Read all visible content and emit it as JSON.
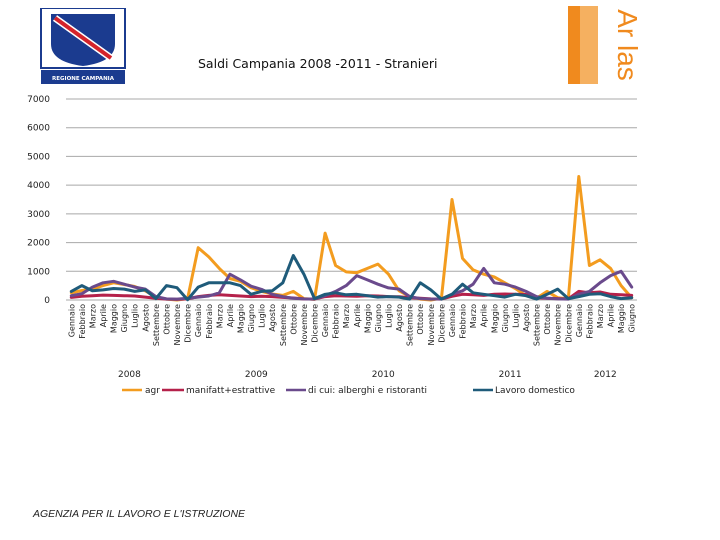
{
  "header": {
    "left_logo_text": "REGIONE CAMPANIA",
    "right_logo_text": "Ar las",
    "title": "Saldi Campania 2008 -2011 - Stranieri"
  },
  "footer": {
    "text": "AGENZIA PER IL LAVORO E L'ISTRUZIONE"
  },
  "colors": {
    "agr": "#F39C1F",
    "manifatt": "#B5214A",
    "alberghi": "#6A4A8C",
    "domestico": "#1F5B7A",
    "grid": "#a8a8a8"
  },
  "chart_data": {
    "type": "line",
    "title": "Saldi Campania 2008 -2011 - Stranieri",
    "ylim": [
      0,
      7000
    ],
    "yticks": [
      0,
      1000,
      2000,
      3000,
      4000,
      5000,
      6000,
      7000
    ],
    "months": [
      "Gennaio",
      "Febbraio",
      "Marzo",
      "Aprile",
      "Maggio",
      "Giugno",
      "Luglio",
      "Agosto",
      "Settembre",
      "Ottobre",
      "Novembre",
      "Dicembre"
    ],
    "years": [
      "2008",
      "2009",
      "2010",
      "2011",
      "2012"
    ],
    "categories_count": 54,
    "legend_position": "bottom",
    "series": [
      {
        "name": "agr",
        "color": "#F39C1F",
        "values": [
          250,
          330,
          380,
          500,
          600,
          540,
          470,
          320,
          100,
          30,
          0,
          50,
          1820,
          1500,
          1100,
          750,
          650,
          430,
          300,
          210,
          160,
          300,
          50,
          20,
          2330,
          1200,
          980,
          950,
          1100,
          1250,
          900,
          320,
          120,
          30,
          0,
          60,
          3500,
          1450,
          1050,
          900,
          800,
          600,
          400,
          150,
          60,
          300,
          80,
          40,
          4300,
          1200,
          1400,
          1100,
          500,
          80
        ]
      },
      {
        "name": "manifatt+estrattive",
        "color": "#B5214A",
        "values": [
          90,
          130,
          150,
          170,
          160,
          150,
          140,
          100,
          60,
          30,
          20,
          40,
          120,
          160,
          180,
          160,
          140,
          120,
          130,
          120,
          90,
          70,
          40,
          30,
          120,
          150,
          140,
          130,
          150,
          140,
          120,
          110,
          80,
          60,
          40,
          30,
          130,
          200,
          180,
          160,
          200,
          210,
          200,
          190,
          80,
          60,
          50,
          40,
          300,
          250,
          280,
          200,
          180,
          160
        ]
      },
      {
        "name": "di cui: alberghi e ristoranti",
        "color": "#6A4A8C",
        "values": [
          150,
          220,
          450,
          600,
          650,
          550,
          450,
          380,
          120,
          40,
          30,
          60,
          100,
          140,
          250,
          900,
          700,
          480,
          370,
          200,
          120,
          60,
          40,
          30,
          150,
          300,
          500,
          850,
          700,
          550,
          420,
          380,
          120,
          50,
          30,
          40,
          200,
          320,
          550,
          1100,
          600,
          550,
          450,
          300,
          120,
          60,
          40,
          30,
          200,
          300,
          600,
          850,
          1000,
          450
        ]
      },
      {
        "name": "Lavoro domestico",
        "color": "#1F5B7A",
        "values": [
          300,
          500,
          320,
          350,
          400,
          380,
          300,
          350,
          50,
          500,
          430,
          10,
          450,
          600,
          600,
          600,
          500,
          200,
          300,
          320,
          600,
          1550,
          900,
          50,
          200,
          250,
          180,
          200,
          150,
          100,
          120,
          100,
          30,
          600,
          350,
          30,
          200,
          550,
          250,
          200,
          150,
          100,
          200,
          150,
          30,
          200,
          380,
          50,
          120,
          200,
          220,
          120,
          50,
          80
        ]
      }
    ]
  }
}
